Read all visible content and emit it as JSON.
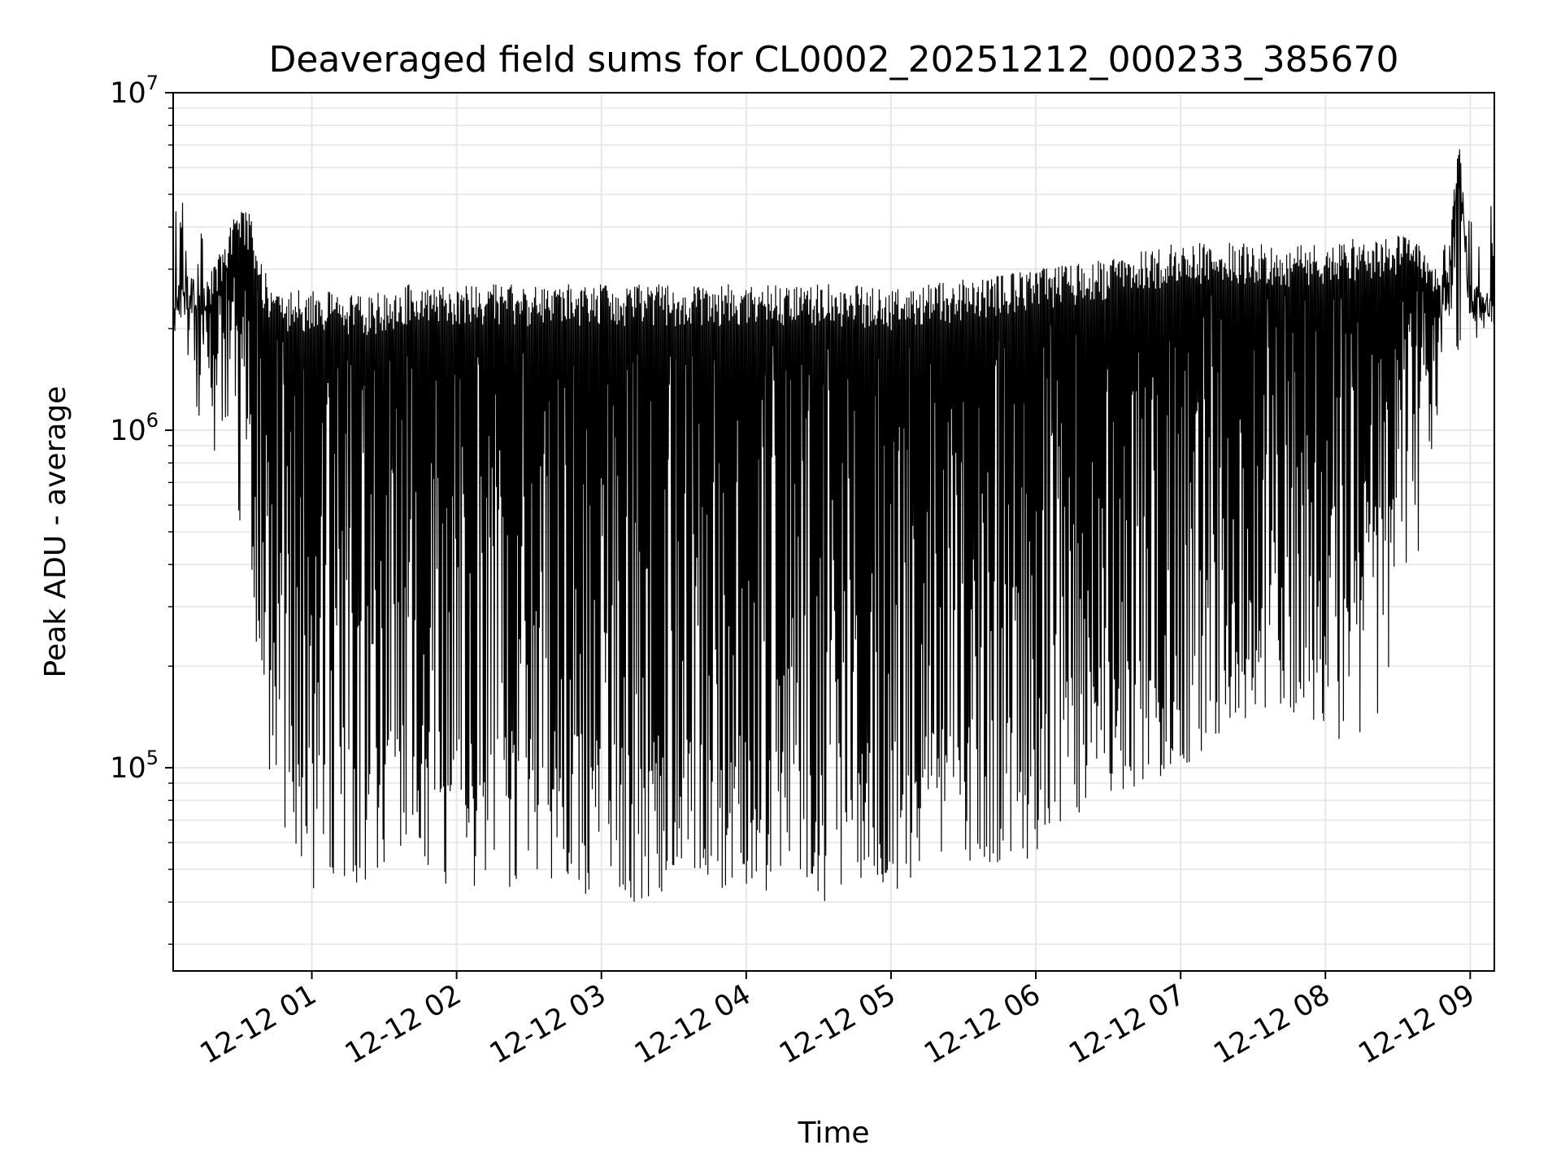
{
  "chart_data": {
    "type": "line",
    "title": "Deaveraged field sums for CL0002_20251212_000233_385670",
    "xlabel": "Time",
    "ylabel": "Peak ADU - average",
    "yscale": "log",
    "ylim": [
      25000,
      10000000
    ],
    "xlim": [
      "2025-12-12 00:02:33",
      "2025-12-12 09:10:00"
    ],
    "grid": true,
    "line_color": "#000000",
    "grid_color": "#e6e6e6",
    "x_ticks": [
      {
        "value": "2025-12-12 01:00",
        "label": "12-12 01"
      },
      {
        "value": "2025-12-12 02:00",
        "label": "12-12 02"
      },
      {
        "value": "2025-12-12 03:00",
        "label": "12-12 03"
      },
      {
        "value": "2025-12-12 04:00",
        "label": "12-12 04"
      },
      {
        "value": "2025-12-12 05:00",
        "label": "12-12 05"
      },
      {
        "value": "2025-12-12 06:00",
        "label": "12-12 06"
      },
      {
        "value": "2025-12-12 07:00",
        "label": "12-12 07"
      },
      {
        "value": "2025-12-12 08:00",
        "label": "12-12 08"
      },
      {
        "value": "2025-12-12 09:00",
        "label": "12-12 09"
      }
    ],
    "y_ticks": [
      {
        "value": 100000,
        "base": "10",
        "exp": "5"
      },
      {
        "value": 1000000,
        "base": "10",
        "exp": "6"
      },
      {
        "value": 10000000,
        "base": "10",
        "exp": "7"
      }
    ],
    "series": [
      {
        "x": [
          "2025-12-12 00:02:33",
          "2025-12-12 00:10",
          "2025-12-12 00:15",
          "2025-12-12 00:20",
          "2025-12-12 00:25",
          "2025-12-12 00:30",
          "2025-12-12 00:35",
          "2025-12-12 00:40",
          "2025-12-12 00:45",
          "2025-12-12 00:50",
          "2025-12-12 00:55",
          "2025-12-12 01:00",
          "2025-12-12 01:10",
          "2025-12-12 01:20",
          "2025-12-12 01:30",
          "2025-12-12 01:40",
          "2025-12-12 01:50",
          "2025-12-12 02:00",
          "2025-12-12 02:15",
          "2025-12-12 02:30",
          "2025-12-12 02:45",
          "2025-12-12 03:00",
          "2025-12-12 03:15",
          "2025-12-12 03:30",
          "2025-12-12 03:45",
          "2025-12-12 04:00",
          "2025-12-12 04:15",
          "2025-12-12 04:30",
          "2025-12-12 04:45",
          "2025-12-12 05:00",
          "2025-12-12 05:15",
          "2025-12-12 05:30",
          "2025-12-12 05:45",
          "2025-12-12 06:00",
          "2025-12-12 06:15",
          "2025-12-12 06:30",
          "2025-12-12 06:45",
          "2025-12-12 07:00",
          "2025-12-12 07:15",
          "2025-12-12 07:30",
          "2025-12-12 07:45",
          "2025-12-12 08:00",
          "2025-12-12 08:15",
          "2025-12-12 08:30",
          "2025-12-12 08:40",
          "2025-12-12 08:50",
          "2025-12-12 08:55",
          "2025-12-12 09:00",
          "2025-12-12 09:10"
        ],
        "upper": [
          2600000,
          3000000,
          2600000,
          3200000,
          3800000,
          4800000,
          4400000,
          3000000,
          2700000,
          2600000,
          2600000,
          2600000,
          2600000,
          2500000,
          2600000,
          2700000,
          2700000,
          2700000,
          2700000,
          2700000,
          2700000,
          2700000,
          2700000,
          2700000,
          2700000,
          2700000,
          2700000,
          2700000,
          2700000,
          2600000,
          2700000,
          2800000,
          2900000,
          3000000,
          3100000,
          3200000,
          3400000,
          3600000,
          3600000,
          3600000,
          3500000,
          3600000,
          3700000,
          3800000,
          3600000,
          2600000,
          7800000,
          2700000,
          2600000
        ],
        "lower": [
          2000000,
          1800000,
          1500000,
          900000,
          1200000,
          1300000,
          400000,
          200000,
          90000,
          60000,
          55000,
          50000,
          55000,
          55000,
          52000,
          55000,
          55000,
          50000,
          52000,
          52000,
          52000,
          50000,
          50000,
          50000,
          50000,
          50000,
          50000,
          48000,
          48000,
          50000,
          52000,
          55000,
          60000,
          65000,
          75000,
          85000,
          100000,
          110000,
          130000,
          150000,
          160000,
          170000,
          200000,
          300000,
          700000,
          1500000,
          1800000,
          1900000,
          2000000
        ],
        "min": [
          2000000,
          1500000,
          700000,
          850000,
          1000000,
          500000,
          350000,
          130000,
          70000,
          50000,
          40000,
          40000,
          42000,
          43000,
          45000,
          45000,
          42000,
          38000,
          40000,
          45000,
          45000,
          40000,
          40000,
          40000,
          42000,
          40000,
          40000,
          40000,
          42000,
          42000,
          45000,
          50000,
          50000,
          55000,
          70000,
          75000,
          90000,
          95000,
          110000,
          130000,
          130000,
          120000,
          100000,
          200000,
          500000,
          1500000,
          1700000,
          1700000,
          2000000
        ]
      }
    ]
  }
}
